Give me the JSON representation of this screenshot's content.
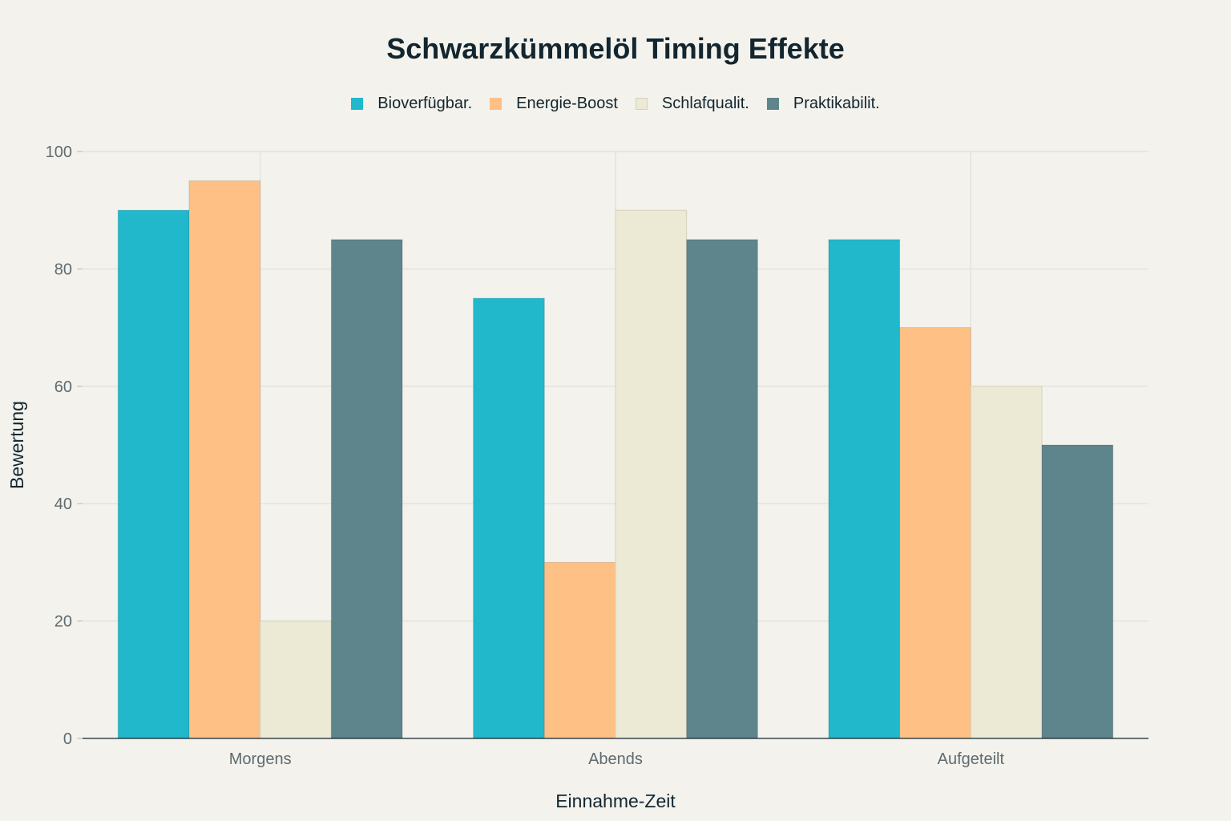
{
  "chart_data": {
    "type": "bar",
    "title": "Schwarzkümmelöl Timing Effekte",
    "xlabel": "Einnahme-Zeit",
    "ylabel": "Bewertung",
    "categories": [
      "Morgens",
      "Abends",
      "Aufgeteilt"
    ],
    "ylim": [
      0,
      100
    ],
    "yticks": [
      0,
      20,
      40,
      60,
      80,
      100
    ],
    "grid": true,
    "legend_position": "top-center",
    "series": [
      {
        "name": "Bioverfügbar.",
        "color": "#21b8cc",
        "values": [
          90,
          75,
          85
        ]
      },
      {
        "name": "Energie-Boost",
        "color": "#fec085",
        "values": [
          95,
          30,
          70
        ]
      },
      {
        "name": "Schlafqualit.",
        "color": "#ece9d4",
        "values": [
          20,
          90,
          60
        ]
      },
      {
        "name": "Praktikabilit.",
        "color": "#5e858c",
        "values": [
          85,
          85,
          50
        ]
      }
    ]
  }
}
